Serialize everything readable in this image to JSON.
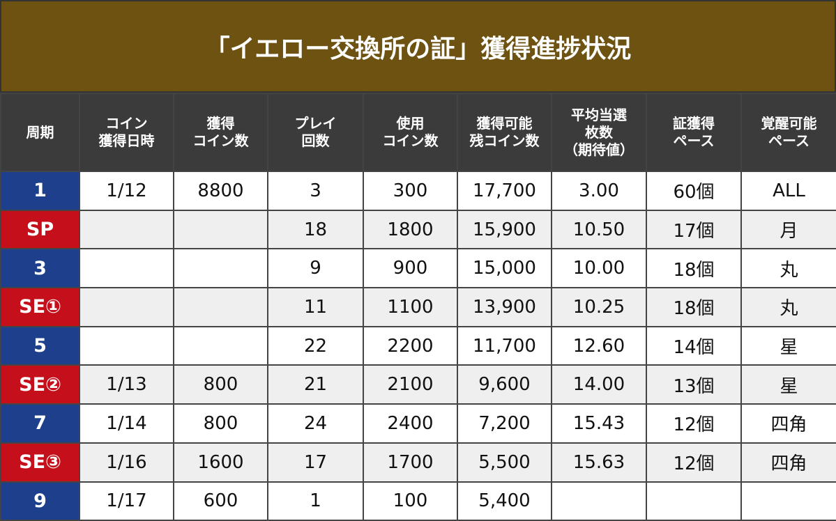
{
  "title": "「イエロー交換所の証」獲得進捗状況",
  "table": {
    "header": [
      "周期",
      "コイン\n獲得日時",
      "獲得\nコイン数",
      "プレイ\n回数",
      "使用\nコイン数",
      "獲得可能\n残コイン数",
      "平均当選\n枚数\n（期待値）",
      "証獲得\nペース",
      "覚醒可能\nペース"
    ],
    "rows": [
      {
        "color": "#1d3f8c",
        "cells": [
          "1",
          "1/12",
          "8800",
          "3",
          "300",
          "17,700",
          "3.00",
          "60個",
          "ALL"
        ]
      },
      {
        "color": "#c5101b",
        "cells": [
          "SP",
          null,
          null,
          "18",
          "1800",
          "15,900",
          "10.50",
          "17個",
          "月"
        ]
      },
      {
        "color": "#1d3f8c",
        "cells": [
          "3",
          null,
          null,
          "9",
          "900",
          "15,000",
          "10.00",
          "18個",
          "丸"
        ]
      },
      {
        "color": "#c5101b",
        "cells": [
          "SE①",
          null,
          null,
          "11",
          "1100",
          "13,900",
          "10.25",
          "18個",
          "丸"
        ]
      },
      {
        "color": "#1d3f8c",
        "cells": [
          "5",
          null,
          null,
          "22",
          "2200",
          "11,700",
          "12.60",
          "14個",
          "星"
        ]
      },
      {
        "color": "#c5101b",
        "cells": [
          "SE②",
          "1/13",
          "800",
          "21",
          "2100",
          "9,600",
          "14.00",
          "13個",
          "星"
        ]
      },
      {
        "color": "#1d3f8c",
        "cells": [
          "7",
          "1/14",
          "800",
          "24",
          "2400",
          "7,200",
          "15.43",
          "12個",
          "四角"
        ]
      },
      {
        "color": "#c5101b",
        "cells": [
          "SE③",
          "1/16",
          "1600",
          "17",
          "1700",
          "5,500",
          "15.63",
          "12個",
          "四角"
        ]
      },
      {
        "color": "#1d3f8c",
        "cells": [
          "9",
          "1/17",
          "600",
          "1",
          "100",
          "5,400",
          null,
          null,
          null
        ]
      }
    ]
  }
}
